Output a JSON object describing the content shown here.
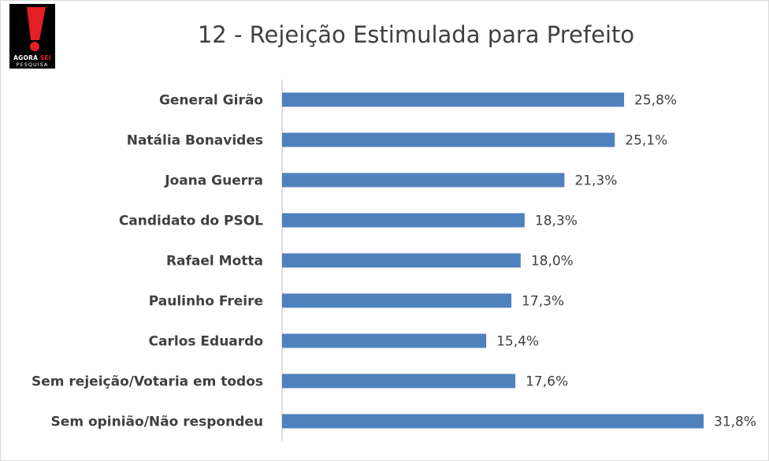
{
  "logo": {
    "line1_a": "AGORA",
    "line1_b": "SEI",
    "line2": "PESQUISA",
    "brand_red": "#e31e24"
  },
  "colors": {
    "bar": "#4f81bd",
    "text": "#404040",
    "axis": "#bfbfbf"
  },
  "chart_data": {
    "type": "bar",
    "orientation": "horizontal",
    "title": "12 - Rejeição Estimulada para Prefeito",
    "categories": [
      "General Girão",
      "Natália Bonavides",
      "Joana Guerra",
      "Candidato do PSOL",
      "Rafael Motta",
      "Paulinho Freire",
      "Carlos Eduardo",
      "Sem rejeição/Votaria em todos",
      "Sem opinião/Não respondeu"
    ],
    "values": [
      25.8,
      25.1,
      21.3,
      18.3,
      18.0,
      17.3,
      15.4,
      17.6,
      31.8
    ],
    "data_labels": [
      "25,8%",
      "25,1%",
      "21,3%",
      "18,3%",
      "18,0%",
      "17,3%",
      "15,4%",
      "17,6%",
      "31,8%"
    ],
    "xlim": [
      0,
      31.8
    ],
    "grid": false,
    "legend": "none"
  }
}
